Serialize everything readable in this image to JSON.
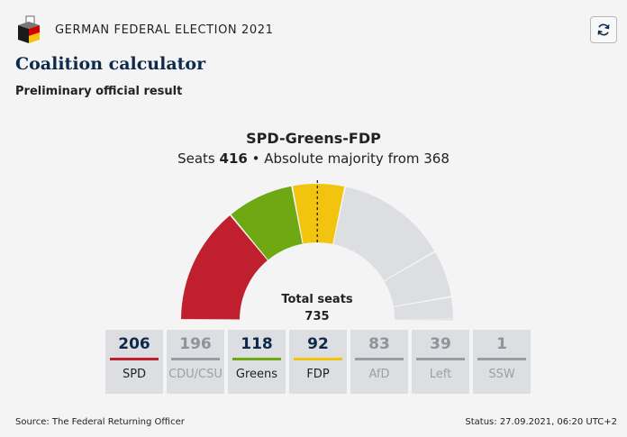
{
  "header": {
    "election_title": "GERMAN FEDERAL ELECTION 2021",
    "refresh_label": "Refresh",
    "icons": {
      "logo": "ballot-box-icon",
      "refresh": "refresh-icon"
    }
  },
  "page": {
    "title": "Coalition calculator",
    "subtitle": "Preliminary official result"
  },
  "coalition": {
    "name": "SPD-Greens-FDP",
    "seats_label": "Seats",
    "seats": 416,
    "majority_text": "• Absolute majority from 368"
  },
  "chart_data": {
    "type": "semicircle-parliament",
    "total_label": "Total seats",
    "total_seats": 735,
    "majority_threshold": 368,
    "segments": [
      {
        "party": "SPD",
        "seats": 206,
        "color": "#c0202d",
        "in_coalition": true
      },
      {
        "party": "Greens",
        "seats": 118,
        "color": "#6ea812",
        "in_coalition": true
      },
      {
        "party": "FDP",
        "seats": 92,
        "color": "#f2c40d",
        "in_coalition": true
      },
      {
        "party": "CDU/CSU",
        "seats": 196,
        "color": "#dcdee2",
        "in_coalition": false
      },
      {
        "party": "AfD",
        "seats": 83,
        "color": "#dcdee2",
        "in_coalition": false
      },
      {
        "party": "Left",
        "seats": 39,
        "color": "#dcdee2",
        "in_coalition": false
      },
      {
        "party": "SSW",
        "seats": 1,
        "color": "#dcdee2",
        "in_coalition": false
      }
    ]
  },
  "parties": [
    {
      "name": "SPD",
      "seats": "206",
      "color": "#c0202d",
      "in_coalition": true
    },
    {
      "name": "CDU/CSU",
      "seats": "196",
      "color": "#999ea4",
      "in_coalition": false
    },
    {
      "name": "Greens",
      "seats": "118",
      "color": "#6ea812",
      "in_coalition": true
    },
    {
      "name": "FDP",
      "seats": "92",
      "color": "#f2c40d",
      "in_coalition": true
    },
    {
      "name": "AfD",
      "seats": "83",
      "color": "#999ea4",
      "in_coalition": false
    },
    {
      "name": "Left",
      "seats": "39",
      "color": "#999ea4",
      "in_coalition": false
    },
    {
      "name": "SSW",
      "seats": "1",
      "color": "#999ea4",
      "in_coalition": false
    }
  ],
  "footer": {
    "source": "Source: The Federal Returning Officer",
    "status": "Status: 27.09.2021, 06:20 UTC+2"
  }
}
